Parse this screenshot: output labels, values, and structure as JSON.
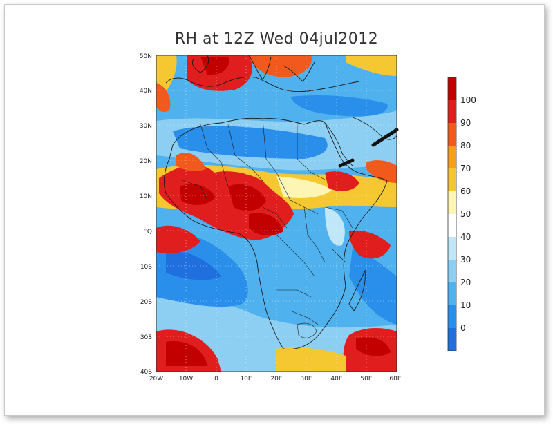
{
  "title": "RH at 12Z Wed 04jul2012",
  "lat_labels": [
    "50N",
    "40N",
    "30N",
    "20N",
    "10N",
    "EQ",
    "10S",
    "20S",
    "30S",
    "40S"
  ],
  "lon_labels": [
    "20W",
    "10W",
    "0",
    "10E",
    "20E",
    "30E",
    "40E",
    "50E",
    "60E"
  ],
  "map": {
    "lon_range": [
      -20,
      60
    ],
    "lat_range": [
      -40,
      50
    ],
    "variable": "RH"
  },
  "colorbar": {
    "labels": [
      "100",
      "90",
      "80",
      "70",
      "60",
      "50",
      "40",
      "30",
      "20",
      "10",
      "0"
    ],
    "colors": [
      "#c20000",
      "#e11e1e",
      "#f25a1d",
      "#f4a019",
      "#f5c832",
      "#fdf5b4",
      "#ffffff",
      "#bfe7f8",
      "#8dcff2",
      "#4fb2ee",
      "#2a8fea",
      "#1f6fdf"
    ]
  }
}
